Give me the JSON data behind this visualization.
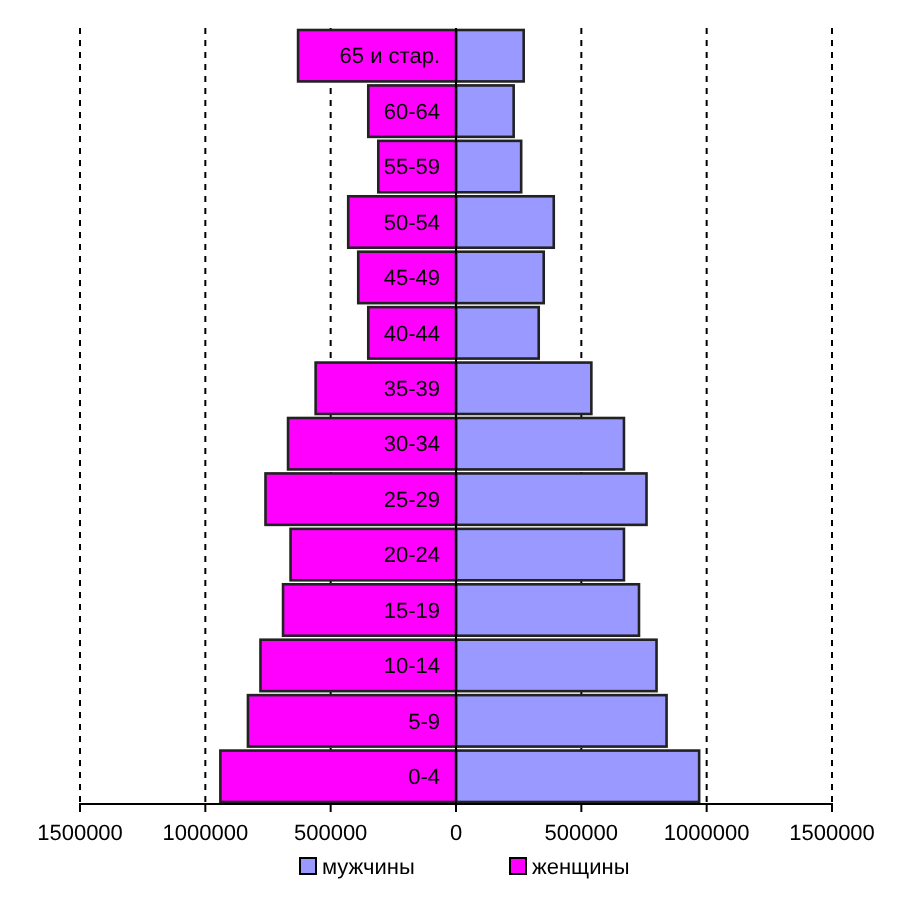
{
  "chart_data": {
    "type": "bar",
    "orientation": "horizontal",
    "stacked": true,
    "categories": [
      "65 и стар.",
      "60-64",
      "55-59",
      "50-54",
      "45-49",
      "40-44",
      "35-39",
      "30-34",
      "25-29",
      "20-24",
      "15-19",
      "10-14",
      "5-9",
      "0-4"
    ],
    "series": [
      {
        "name": "мужчины",
        "color": "#9999ff",
        "values": [
          270000,
          230000,
          260000,
          390000,
          350000,
          330000,
          540000,
          670000,
          760000,
          670000,
          730000,
          800000,
          840000,
          970000
        ]
      },
      {
        "name": "женщины",
        "color": "#ff00ff",
        "values": [
          -630000,
          -350000,
          -310000,
          -430000,
          -390000,
          -350000,
          -560000,
          -670000,
          -760000,
          -660000,
          -690000,
          -780000,
          -830000,
          -940000
        ]
      }
    ],
    "xlim": [
      -1500000,
      1500000
    ],
    "xticks": [
      {
        "value": -1500000,
        "label": "1500000"
      },
      {
        "value": -1000000,
        "label": "1000000"
      },
      {
        "value": -500000,
        "label": "500000"
      },
      0,
      500000,
      1000000,
      1500000
    ],
    "grid": "x",
    "legend": "bottom"
  }
}
